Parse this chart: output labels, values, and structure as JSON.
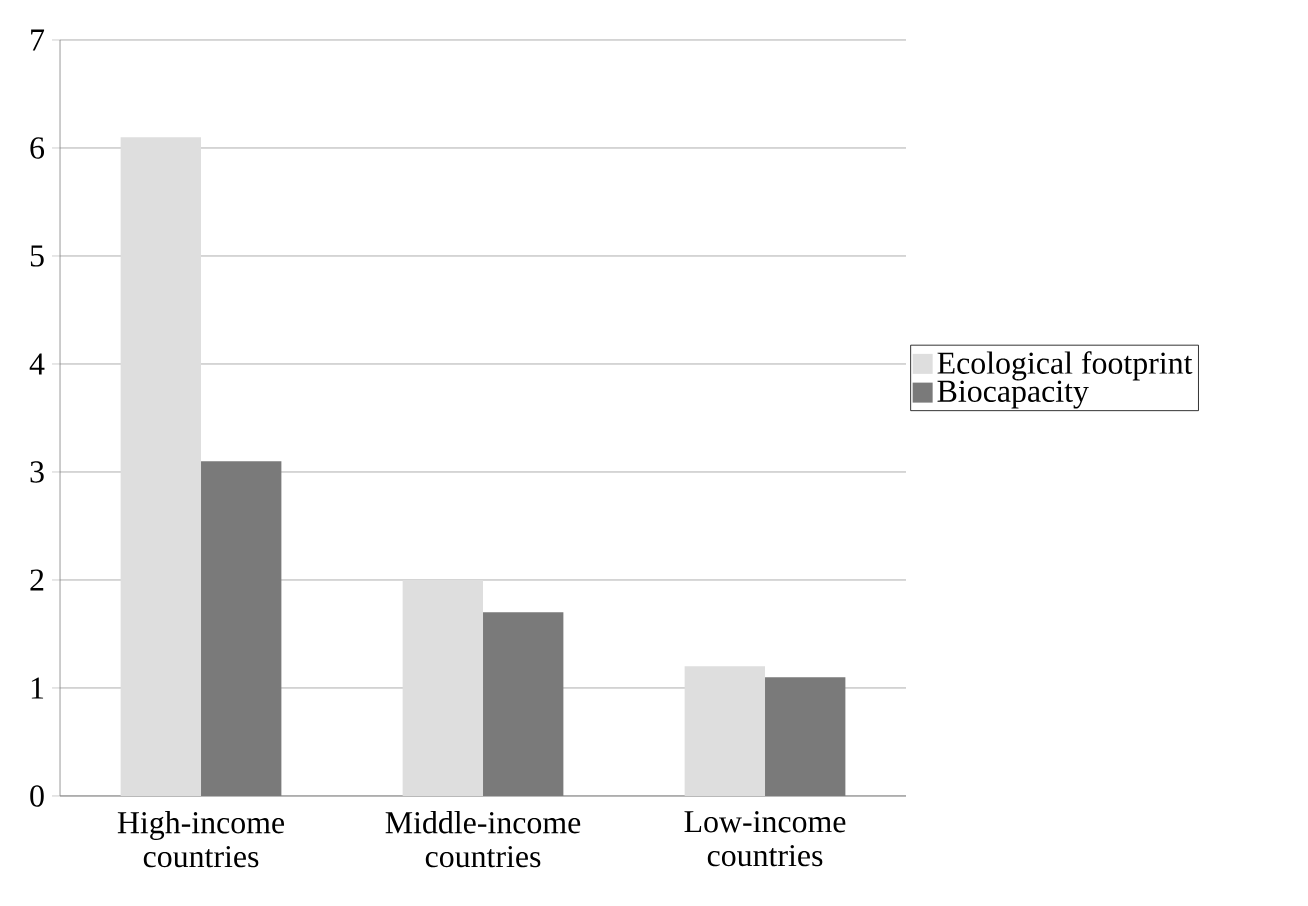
{
  "chart_data": {
    "type": "bar",
    "categories": [
      "High-income countries",
      "Middle-income countries",
      "Low-income countries"
    ],
    "series": [
      {
        "name": "Ecological footprint",
        "color": "#dedede",
        "values": [
          6.1,
          2.0,
          1.2
        ]
      },
      {
        "name": "Biocapacity",
        "color": "#7a7a7a",
        "values": [
          3.1,
          1.7,
          1.1
        ]
      }
    ],
    "ylim": [
      0,
      7
    ],
    "yticks": [
      0,
      1,
      2,
      3,
      4,
      5,
      6,
      7
    ],
    "grid": "y",
    "legend": "right"
  }
}
